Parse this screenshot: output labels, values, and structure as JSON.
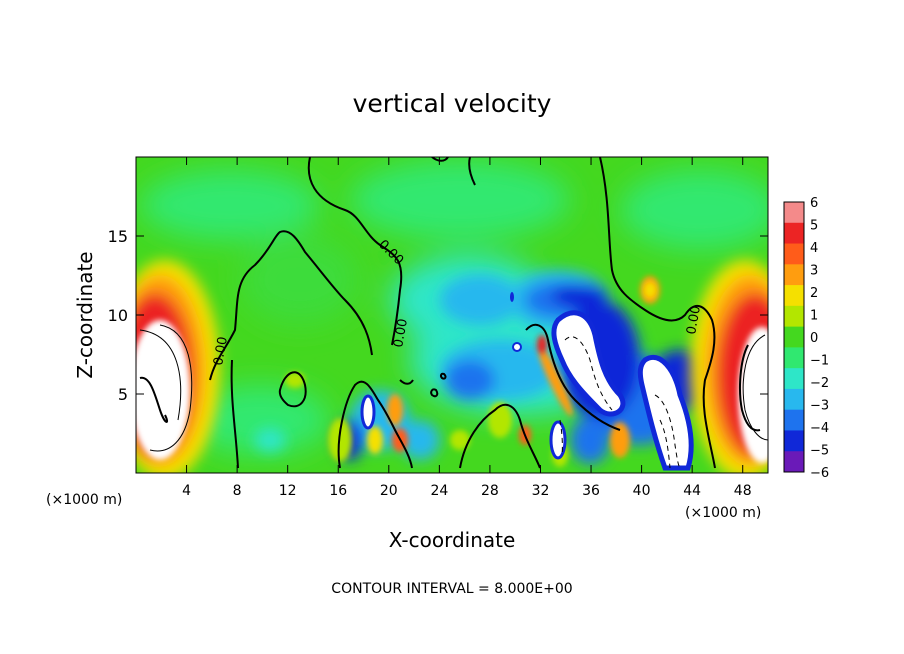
{
  "chart_data": {
    "type": "heatmap",
    "title": "vertical velocity",
    "xlabel": "X-coordinate",
    "ylabel": "Z-coordinate",
    "x_unit_label": "(×1000 m)",
    "footer": "CONTOUR INTERVAL = 8.000E+00",
    "xlim": [
      0,
      50
    ],
    "ylim": [
      0,
      20
    ],
    "x_ticks": [
      4,
      8,
      12,
      16,
      20,
      24,
      28,
      32,
      36,
      40,
      44,
      48
    ],
    "y_ticks": [
      5,
      10,
      15
    ],
    "colorbar": {
      "ticks": [
        6,
        5,
        4,
        3,
        2,
        1,
        0,
        -1,
        -2,
        -3,
        -4,
        -5,
        -6
      ],
      "colors": [
        "#f48a8a",
        "#ec2424",
        "#ff5c1a",
        "#ff9d0f",
        "#f5e000",
        "#b3e600",
        "#44d81f",
        "#30e870",
        "#2ee6c8",
        "#28b8ee",
        "#1e73ee",
        "#1028d8",
        "#6a1ab8"
      ],
      "range": [
        -6,
        6
      ]
    },
    "contour_label": "0.00",
    "grid": false,
    "legend": "colorbar-right"
  }
}
